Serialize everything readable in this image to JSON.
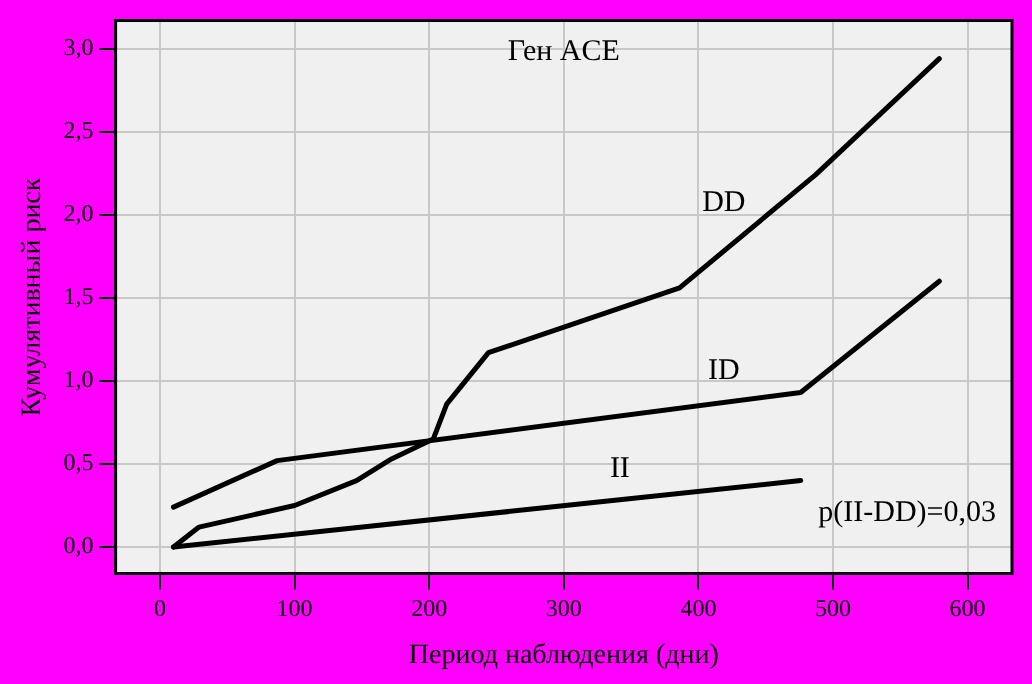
{
  "chart_data": {
    "type": "line",
    "title": "Ген ACE",
    "xlabel": "Период наблюдения (дни)",
    "ylabel": "Кумулятивный риск",
    "annotations": [
      "p(II-DD)=0,03"
    ],
    "series": [
      {
        "name": "DD",
        "color": "#000000",
        "x": [
          10,
          29,
          100,
          146,
          172,
          203,
          213,
          244,
          386,
          487,
          579
        ],
        "values": [
          0,
          0.12,
          0.25,
          0.4,
          0.53,
          0.65,
          0.86,
          1.17,
          1.56,
          2.24,
          2.94
        ]
      },
      {
        "name": "ID",
        "color": "#000000",
        "x": [
          10,
          87,
          476,
          579
        ],
        "values": [
          0.24,
          0.52,
          0.93,
          1.6
        ]
      },
      {
        "name": "II",
        "color": "#000000",
        "x": [
          10,
          476
        ],
        "values": [
          0,
          0.4
        ]
      }
    ],
    "xlim": [
      -33,
      633
    ],
    "xticks": [
      0,
      100,
      200,
      300,
      400,
      500,
      600
    ],
    "ylim": [
      -0.16,
      3.17
    ],
    "yticks": [
      {
        "value": 0,
        "label": "0,0"
      },
      {
        "value": 0.5,
        "label": "0,5"
      },
      {
        "value": 1,
        "label": "1,0"
      },
      {
        "value": 1.5,
        "label": "1,5"
      },
      {
        "value": 2,
        "label": "2,0"
      },
      {
        "value": 2.5,
        "label": "2,5"
      },
      {
        "value": 3,
        "label": "3,0"
      }
    ],
    "grid": true,
    "legend": false,
    "marker": "none",
    "line_style": "solid"
  }
}
